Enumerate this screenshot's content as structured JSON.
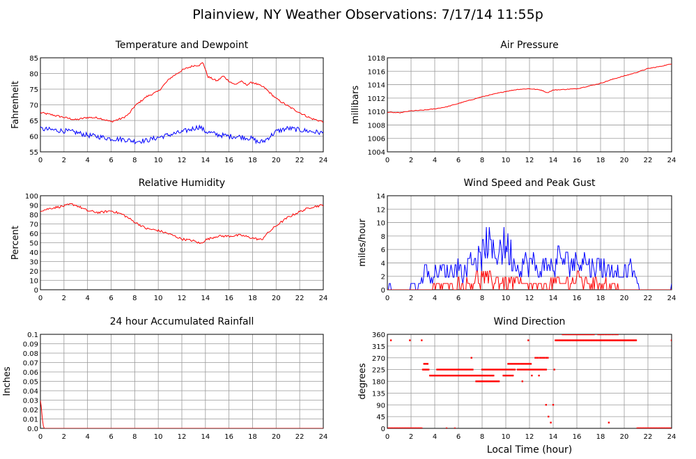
{
  "page_title": "Plainview, NY Weather Observations: 7/17/14 11:55p",
  "x_axis_label": "Local Time (hour)",
  "colors": {
    "red": "#ff0000",
    "blue": "#0000ff"
  },
  "chart_data": [
    {
      "id": "temp",
      "type": "line",
      "title": "Temperature and Dewpoint",
      "ylabel": "Fahrenheit",
      "xlim": [
        0,
        24
      ],
      "ylim": [
        55,
        85
      ],
      "xticks": [
        "0",
        "2",
        "4",
        "6",
        "8",
        "10",
        "12",
        "14",
        "16",
        "18",
        "20",
        "22",
        "24"
      ],
      "yticks": [
        "55",
        "60",
        "65",
        "70",
        "75",
        "80",
        "85"
      ],
      "grid": true,
      "series": [
        {
          "color": "#ff0000",
          "noise": 0.3,
          "x": [
            0,
            1,
            2,
            3,
            4,
            5,
            6,
            7,
            7.5,
            8,
            9,
            10,
            11,
            12,
            12.5,
            13,
            13.5,
            13.8,
            14.2,
            15,
            15.5,
            16,
            16.5,
            17,
            17.5,
            18,
            19,
            20,
            21,
            22,
            23,
            24
          ],
          "y": [
            67.5,
            66.8,
            66,
            65.2,
            66,
            65.8,
            64.6,
            65.8,
            67,
            69.6,
            72.6,
            74.3,
            78.5,
            81,
            81.8,
            82.5,
            82.7,
            83.5,
            79,
            77.6,
            79.2,
            77.6,
            76.4,
            77.5,
            76.4,
            77.2,
            75.5,
            72,
            69.6,
            67.5,
            65.6,
            64.6
          ]
        },
        {
          "color": "#0000ff",
          "noise": 0.8,
          "x": [
            0,
            1,
            2,
            3,
            4,
            5,
            6,
            7,
            8,
            9,
            10,
            11,
            12,
            13,
            13.5,
            14,
            15,
            16,
            17,
            18,
            18.5,
            19,
            20,
            21,
            22,
            23,
            24
          ],
          "y": [
            62.3,
            62,
            61.7,
            61.2,
            60.3,
            59.8,
            59.2,
            59,
            58.4,
            58.6,
            59.6,
            60.5,
            61.3,
            62.5,
            63,
            61.5,
            60.5,
            60,
            59.8,
            59.2,
            58,
            58.5,
            61.5,
            62.5,
            62,
            61.5,
            61
          ]
        }
      ]
    },
    {
      "id": "pressure",
      "type": "line",
      "title": "Air Pressure",
      "ylabel": "millibars",
      "xlim": [
        0,
        24
      ],
      "ylim": [
        1004,
        1018
      ],
      "xticks": [
        "0",
        "2",
        "4",
        "6",
        "8",
        "10",
        "12",
        "14",
        "16",
        "18",
        "20",
        "22",
        "24"
      ],
      "yticks": [
        "1004",
        "1006",
        "1008",
        "1010",
        "1012",
        "1014",
        "1016",
        "1018"
      ],
      "grid": true,
      "series": [
        {
          "color": "#ff0000",
          "noise": 0.05,
          "x": [
            0,
            1,
            2,
            3,
            4,
            5,
            6,
            7,
            8,
            9,
            10,
            11,
            12,
            13,
            13.5,
            14,
            15,
            16,
            17,
            18,
            19,
            20,
            21,
            22,
            23,
            24
          ],
          "y": [
            1009.9,
            1009.8,
            1010.1,
            1010.2,
            1010.4,
            1010.7,
            1011.2,
            1011.7,
            1012.2,
            1012.6,
            1013,
            1013.3,
            1013.4,
            1013.2,
            1012.8,
            1013.2,
            1013.3,
            1013.4,
            1013.8,
            1014.2,
            1014.8,
            1015.3,
            1015.8,
            1016.4,
            1016.7,
            1017.1
          ]
        }
      ]
    },
    {
      "id": "humidity",
      "type": "line",
      "title": "Relative Humidity",
      "ylabel": "Percent",
      "xlim": [
        0,
        24
      ],
      "ylim": [
        0,
        100
      ],
      "xticks": [
        "0",
        "2",
        "4",
        "6",
        "8",
        "10",
        "12",
        "14",
        "16",
        "18",
        "20",
        "22",
        "24"
      ],
      "yticks": [
        "0",
        "10",
        "20",
        "30",
        "40",
        "50",
        "60",
        "70",
        "80",
        "90",
        "100"
      ],
      "grid": true,
      "series": [
        {
          "color": "#ff0000",
          "noise": 1.2,
          "x": [
            0,
            1,
            2,
            2.6,
            3,
            4,
            5,
            6,
            7,
            8,
            9,
            10,
            11,
            12,
            13,
            13.6,
            14,
            15,
            16,
            17,
            18,
            18.8,
            19,
            20,
            21,
            22,
            23,
            24
          ],
          "y": [
            84,
            87,
            89,
            91,
            90,
            84,
            82,
            84,
            80,
            72,
            65,
            63,
            59,
            54,
            52,
            49,
            53,
            57,
            57,
            58,
            55,
            53,
            57,
            68,
            77,
            83,
            88,
            90
          ]
        }
      ]
    },
    {
      "id": "wind",
      "type": "line",
      "title": "Wind Speed and Peak Gust",
      "ylabel": "miles/hour",
      "xlim": [
        0,
        24
      ],
      "ylim": [
        0,
        15
      ],
      "xticks": [
        "0",
        "2",
        "4",
        "6",
        "8",
        "10",
        "12",
        "14",
        "16",
        "18",
        "20",
        "22",
        "24"
      ],
      "yticks": [
        "0",
        "2",
        "4",
        "6",
        "8",
        "10",
        "12",
        "14"
      ],
      "grid": true,
      "series": [
        {
          "color": "#ff0000",
          "role": "speed"
        },
        {
          "color": "#0000ff",
          "role": "gust"
        }
      ]
    },
    {
      "id": "rain",
      "type": "line",
      "title": "24 hour Accumulated Rainfall",
      "ylabel": "Inches",
      "xlim": [
        0,
        24
      ],
      "ylim": [
        0,
        0.1
      ],
      "xticks": [
        "0",
        "2",
        "4",
        "6",
        "8",
        "10",
        "12",
        "14",
        "16",
        "18",
        "20",
        "22",
        "24"
      ],
      "yticks": [
        "0.0",
        "0.01",
        "0.02",
        "0.03",
        "0.04",
        "0.05",
        "0.06",
        "0.07",
        "0.08",
        "0.09",
        "0.1"
      ],
      "grid": true,
      "series": [
        {
          "color": "#ff0000",
          "noise": 0,
          "x": [
            0,
            0.1,
            0.2,
            0.3,
            24
          ],
          "y": [
            0.03,
            0.02,
            0.005,
            0,
            0
          ]
        }
      ]
    },
    {
      "id": "direction",
      "type": "scatter",
      "title": "Wind Direction",
      "ylabel": "degrees",
      "xlim": [
        0,
        24
      ],
      "ylim": [
        0,
        360
      ],
      "xticks": [
        "0",
        "2",
        "4",
        "6",
        "8",
        "10",
        "12",
        "14",
        "16",
        "18",
        "20",
        "22",
        "24"
      ],
      "yticks": [
        "0",
        "45",
        "90",
        "135",
        "180",
        "225",
        "270",
        "315",
        "360"
      ],
      "grid": true,
      "series": [
        {
          "color": "#ff0000"
        }
      ]
    }
  ]
}
